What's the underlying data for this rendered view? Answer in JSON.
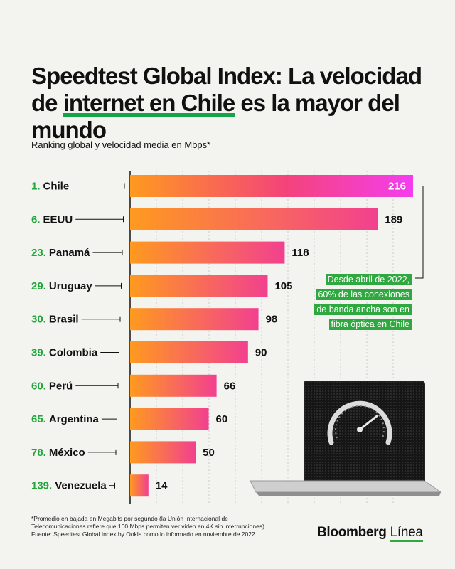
{
  "title": {
    "part1": "Speedtest Global Index: La velocidad de",
    "highlight": "internet en Chile",
    "part2": " es la mayor del mundo"
  },
  "subtitle": "Ranking global y velocidad media en Mbps*",
  "note": "Desde abril de 2022, 60% de las conexiones de banda ancha son en fibra óptica en Chile",
  "footnote": {
    "line1": "*Promedio en bajada en Megabits por segundo (la Unión Internacional de",
    "line2": "Telecomunicaciones refiere que 100 Mbps permiten ver video en 4K sin interrupciones).",
    "line3": "Fuente: Speedtest Global Index by Ookla como lo informado en noviembre de 2022"
  },
  "brand": {
    "name1": "Bloomberg",
    "name2": "Línea"
  },
  "colors": {
    "accent": "#2ea83f",
    "rank": "#22a63b",
    "bar_start": "#ff9a1f",
    "bar_end": "#f040c8",
    "chile_bar_end": "#f43ef0"
  },
  "chart_data": {
    "type": "bar",
    "orientation": "horizontal",
    "categories": [
      "1. Chile",
      "6. EEUU",
      "23. Panamá",
      "29. Uruguay",
      "30. Brasil",
      "39. Colombia",
      "60. Perú",
      "65. Argentina",
      "78. México",
      "139. Venezuela"
    ],
    "ranks": [
      "1.",
      "6.",
      "23.",
      "29.",
      "30.",
      "39.",
      "60.",
      "65.",
      "78.",
      "139."
    ],
    "countries": [
      "Chile",
      "EEUU",
      "Panamá",
      "Uruguay",
      "Brasil",
      "Colombia",
      "Perú",
      "Argentina",
      "México",
      "Venezuela"
    ],
    "values": [
      216,
      189,
      118,
      105,
      98,
      90,
      66,
      60,
      50,
      14
    ],
    "xlim": [
      0,
      216
    ],
    "grid": true,
    "axis_labels_shown": false
  }
}
